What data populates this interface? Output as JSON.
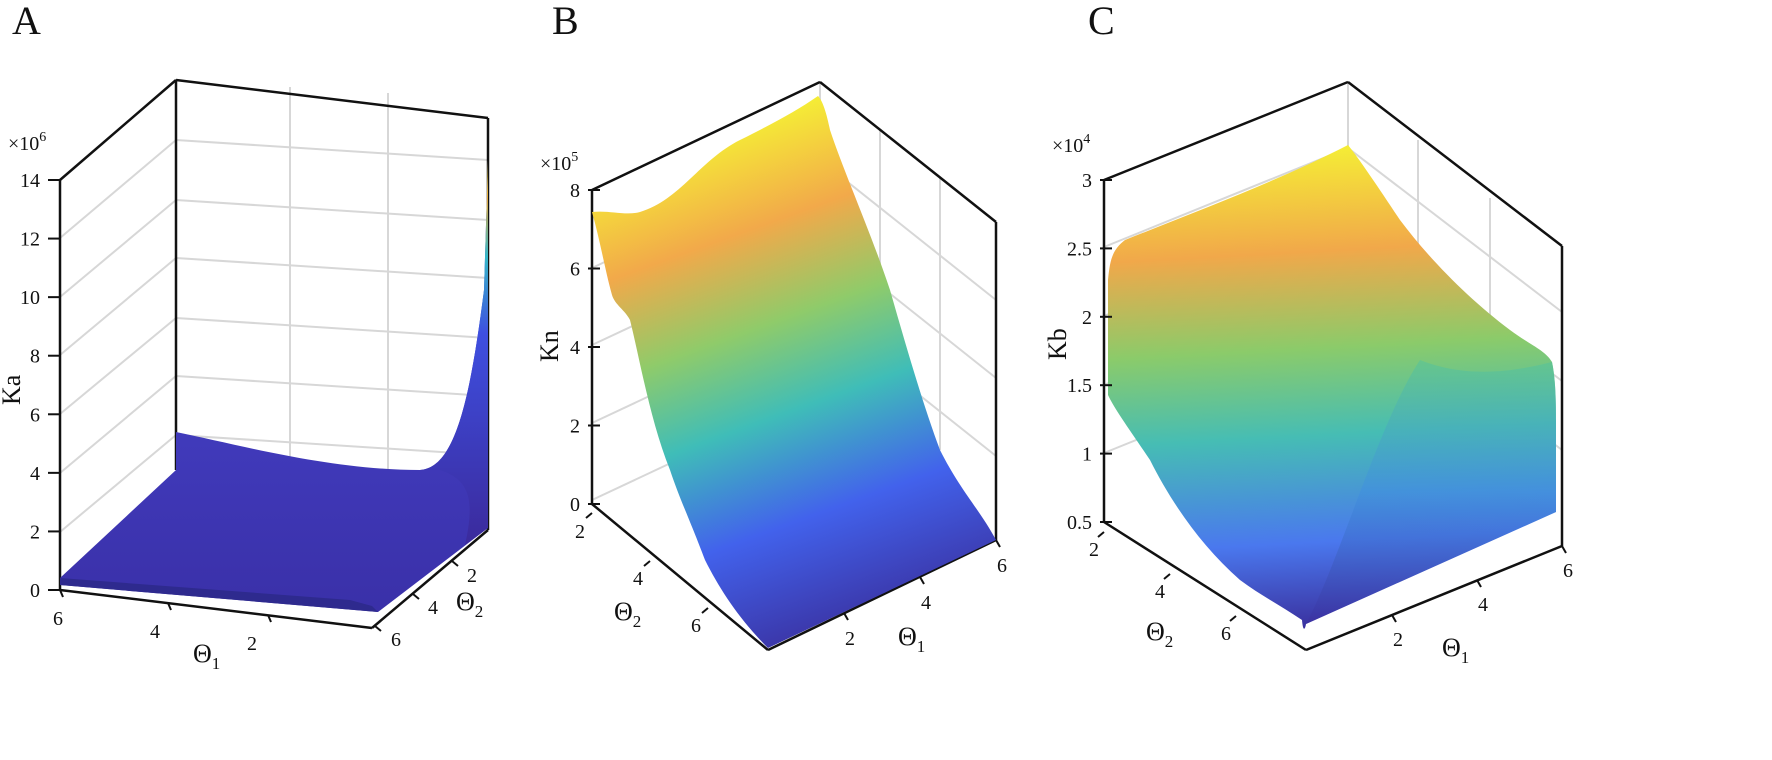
{
  "figure": {
    "panels": [
      {
        "letter": "A",
        "zlabel": "Ka",
        "multiplier_base": "×10",
        "multiplier_exp": "6",
        "xlabel_main": "Θ",
        "xlabel_sub": "1",
        "ylabel_main": "Θ",
        "ylabel_sub": "2"
      },
      {
        "letter": "B",
        "zlabel": "Kn",
        "multiplier_base": "×10",
        "multiplier_exp": "5",
        "xlabel_main": "Θ",
        "xlabel_sub": "1",
        "ylabel_main": "Θ",
        "ylabel_sub": "2"
      },
      {
        "letter": "C",
        "zlabel": "Kb",
        "multiplier_base": "×10",
        "multiplier_exp": "4",
        "xlabel_main": "Θ",
        "xlabel_sub": "1",
        "ylabel_main": "Θ",
        "ylabel_sub": "2"
      }
    ]
  },
  "chart_data": [
    {
      "type": "surface",
      "panel": "A",
      "zlabel": "Ka",
      "z_multiplier": 1000000,
      "z_ticks": [
        "0",
        "2",
        "4",
        "6",
        "8",
        "10",
        "12",
        "14"
      ],
      "zlim": [
        0,
        14
      ],
      "theta1_ticks": [
        "6",
        "4",
        "2"
      ],
      "theta2_ticks": [
        "2",
        "4",
        "6"
      ],
      "theta1_range": [
        0,
        6.28
      ],
      "theta2_range": [
        0,
        6.28
      ],
      "colormap": "parula",
      "grid": true,
      "surface_samples": {
        "theta1": [
          6.28,
          0.1
        ],
        "theta2_low_edge": [
          0.3,
          0.2
        ],
        "note_values": "z≈0.3–5.3 (×10^6) over most domain, rising to ≈13.7 at theta1→0, theta2→0"
      }
    },
    {
      "type": "surface",
      "panel": "B",
      "zlabel": "Kn",
      "z_multiplier": 100000,
      "z_ticks": [
        "0",
        "2",
        "4",
        "6",
        "8"
      ],
      "zlim": [
        0,
        8
      ],
      "theta1_ticks": [
        "2",
        "4",
        "6"
      ],
      "theta2_ticks": [
        "2",
        "4",
        "6"
      ],
      "theta1_range": [
        0,
        6.28
      ],
      "theta2_range": [
        0,
        6.28
      ],
      "colormap": "parula",
      "grid": true
    },
    {
      "type": "surface",
      "panel": "C",
      "zlabel": "Kb",
      "z_multiplier": 10000,
      "z_ticks": [
        "0.5",
        "1",
        "1.5",
        "2",
        "2.5",
        "3"
      ],
      "zlim": [
        0.5,
        3
      ],
      "theta1_ticks": [
        "2",
        "4",
        "6"
      ],
      "theta2_ticks": [
        "2",
        "4",
        "6"
      ],
      "theta1_range": [
        0,
        6.28
      ],
      "theta2_range": [
        0,
        6.28
      ],
      "colormap": "parula",
      "grid": true
    }
  ]
}
